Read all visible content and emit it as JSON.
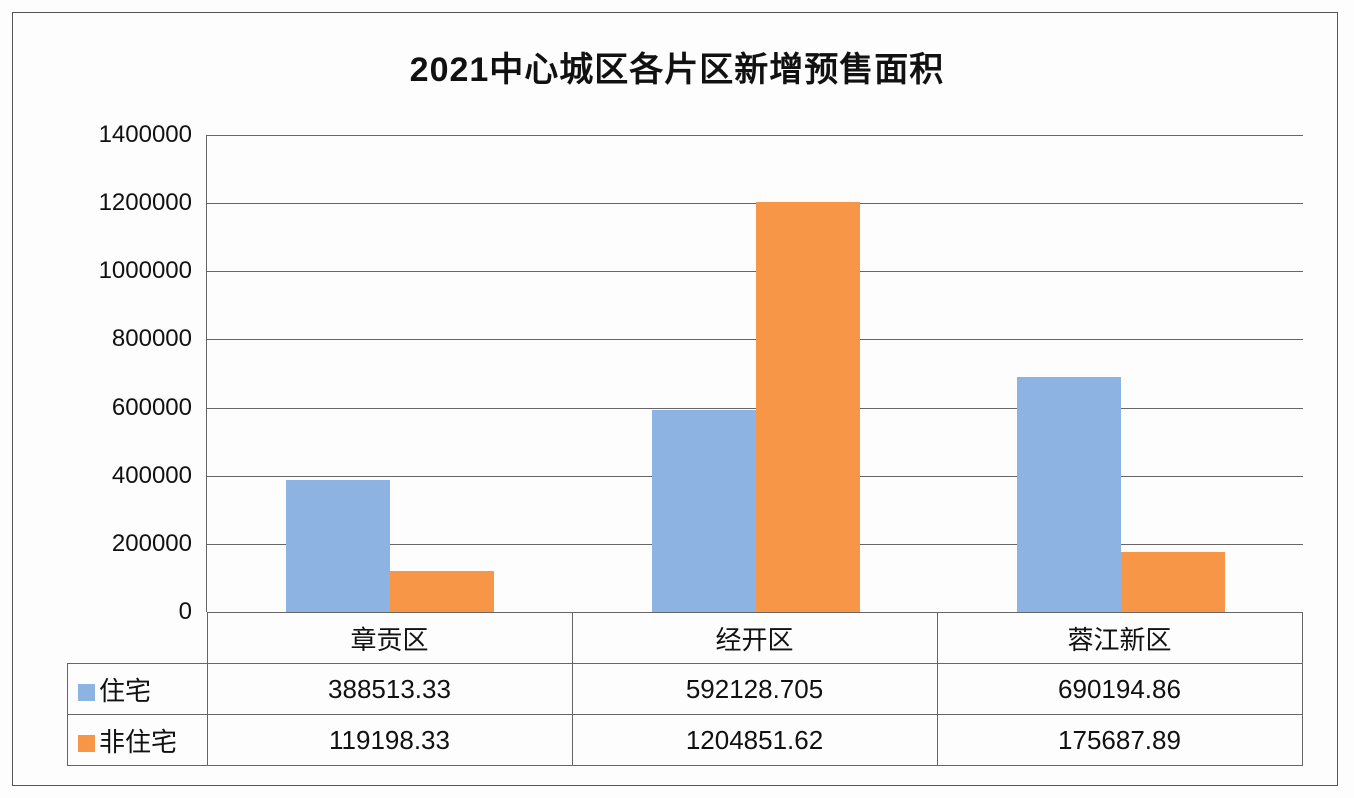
{
  "chart_data": {
    "type": "bar",
    "title": "2021中心城区各片区新增预售面积",
    "categories": [
      "章贡区",
      "经开区",
      "蓉江新区"
    ],
    "series": [
      {
        "name": "住宅",
        "color": "#8DB3E2",
        "values": [
          388513.33,
          592128.705,
          690194.86
        ],
        "display": [
          "388513.33",
          "592128.705",
          "690194.86"
        ]
      },
      {
        "name": "非住宅",
        "color": "#F79646",
        "values": [
          119198.33,
          1204851.62,
          175687.89
        ],
        "display": [
          "119198.33",
          "1204851.62",
          "175687.89"
        ]
      }
    ],
    "xlabel": "",
    "ylabel": "",
    "ylim": [
      0,
      1400000
    ],
    "yticks": [
      "0",
      "200000",
      "400000",
      "600000",
      "800000",
      "1000000",
      "1200000",
      "1400000"
    ],
    "grid": true,
    "legend_position": "data-table",
    "data_table": true
  }
}
